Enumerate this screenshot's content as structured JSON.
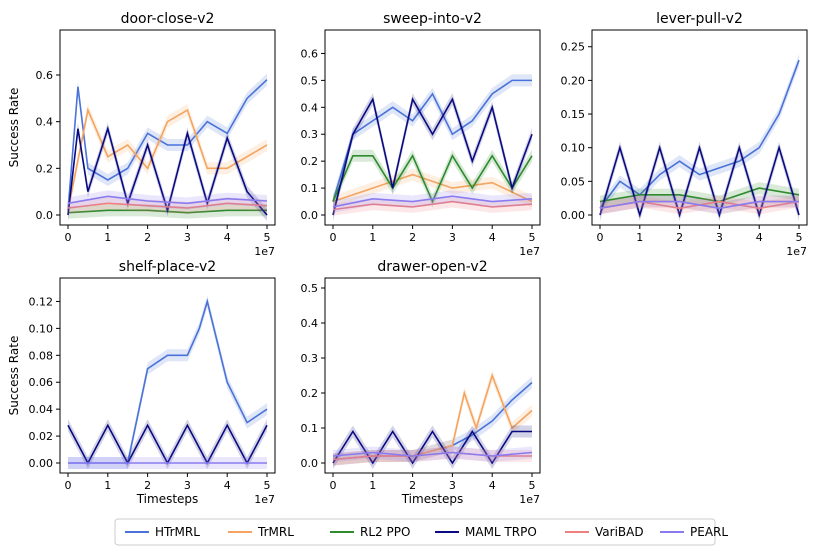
{
  "legend": [
    {
      "name": "HTrMRL",
      "color": "#4a72d8"
    },
    {
      "name": "TrMRL",
      "color": "#f4a460"
    },
    {
      "name": "RL2 PPO",
      "color": "#2e8b2e"
    },
    {
      "name": "MAML TRPO",
      "color": "#0a0a80"
    },
    {
      "name": "VariBAD",
      "color": "#f08080"
    },
    {
      "name": "PEARL",
      "color": "#8a7cf0"
    }
  ],
  "chart_data": [
    {
      "type": "line",
      "title": "door-close-v2",
      "xlabel": "",
      "ylabel": "Success Rate",
      "x_multiplier": "1e7",
      "xlim": [
        0,
        5
      ],
      "ylim": [
        0,
        0.75
      ],
      "xticks": [
        "0",
        "1",
        "2",
        "3",
        "4",
        "5"
      ],
      "yticks": [
        "0.0",
        "0.2",
        "0.4",
        "0.6"
      ],
      "ytick_values": [
        0.0,
        0.2,
        0.4,
        0.6
      ],
      "series": [
        {
          "name": "HTrMRL",
          "x": [
            0,
            0.25,
            0.5,
            1,
            1.5,
            2,
            2.5,
            3,
            3.5,
            4,
            4.5,
            5
          ],
          "values": [
            0.02,
            0.55,
            0.2,
            0.15,
            0.2,
            0.35,
            0.3,
            0.3,
            0.4,
            0.35,
            0.5,
            0.58
          ]
        },
        {
          "name": "TrMRL",
          "x": [
            0,
            0.5,
            1,
            1.5,
            2,
            2.5,
            3,
            3.5,
            4,
            4.5,
            5
          ],
          "values": [
            0.02,
            0.45,
            0.25,
            0.3,
            0.2,
            0.4,
            0.45,
            0.2,
            0.2,
            0.25,
            0.3
          ]
        },
        {
          "name": "RL2 PPO",
          "x": [
            0,
            1,
            2,
            3,
            4,
            5
          ],
          "values": [
            0.01,
            0.02,
            0.02,
            0.01,
            0.02,
            0.02
          ]
        },
        {
          "name": "MAML TRPO",
          "x": [
            0,
            0.25,
            0.5,
            1,
            1.5,
            2,
            2.5,
            3,
            3.5,
            4,
            4.5,
            5
          ],
          "values": [
            0.0,
            0.37,
            0.1,
            0.37,
            0.05,
            0.3,
            0.02,
            0.35,
            0.05,
            0.33,
            0.1,
            0.0
          ]
        },
        {
          "name": "VariBAD",
          "x": [
            0,
            1,
            2,
            3,
            4,
            5
          ],
          "values": [
            0.03,
            0.05,
            0.04,
            0.03,
            0.05,
            0.04
          ]
        },
        {
          "name": "PEARL",
          "x": [
            0,
            1,
            2,
            3,
            4,
            5
          ],
          "values": [
            0.05,
            0.08,
            0.06,
            0.05,
            0.07,
            0.06
          ]
        }
      ]
    },
    {
      "type": "line",
      "title": "sweep-into-v2",
      "xlabel": "",
      "ylabel": "",
      "x_multiplier": "1e7",
      "xlim": [
        0,
        5
      ],
      "ylim": [
        0,
        0.65
      ],
      "xticks": [
        "0",
        "1",
        "2",
        "3",
        "4",
        "5"
      ],
      "yticks": [
        "0.0",
        "0.1",
        "0.2",
        "0.3",
        "0.4",
        "0.5",
        "0.6"
      ],
      "ytick_values": [
        0.0,
        0.1,
        0.2,
        0.3,
        0.4,
        0.5,
        0.6
      ],
      "series": [
        {
          "name": "HTrMRL",
          "x": [
            0,
            0.5,
            1,
            1.5,
            2,
            2.5,
            3,
            3.5,
            4,
            4.5,
            5
          ],
          "values": [
            0.05,
            0.3,
            0.35,
            0.4,
            0.35,
            0.45,
            0.3,
            0.35,
            0.45,
            0.5,
            0.5
          ]
        },
        {
          "name": "TrMRL",
          "x": [
            0,
            1,
            2,
            3,
            4,
            5
          ],
          "values": [
            0.05,
            0.1,
            0.15,
            0.1,
            0.12,
            0.05
          ]
        },
        {
          "name": "RL2 PPO",
          "x": [
            0,
            0.5,
            1,
            1.5,
            2,
            2.5,
            3,
            3.5,
            4,
            4.5,
            5
          ],
          "values": [
            0.05,
            0.22,
            0.22,
            0.1,
            0.22,
            0.05,
            0.22,
            0.1,
            0.22,
            0.1,
            0.22
          ]
        },
        {
          "name": "MAML TRPO",
          "x": [
            0,
            0.5,
            1,
            1.5,
            2,
            2.5,
            3,
            3.5,
            4,
            4.5,
            5
          ],
          "values": [
            0.0,
            0.3,
            0.43,
            0.1,
            0.43,
            0.3,
            0.43,
            0.2,
            0.4,
            0.1,
            0.3
          ]
        },
        {
          "name": "VariBAD",
          "x": [
            0,
            1,
            2,
            3,
            4,
            5
          ],
          "values": [
            0.02,
            0.04,
            0.03,
            0.05,
            0.03,
            0.04
          ]
        },
        {
          "name": "PEARL",
          "x": [
            0,
            1,
            2,
            3,
            4,
            5
          ],
          "values": [
            0.03,
            0.06,
            0.05,
            0.07,
            0.05,
            0.06
          ]
        }
      ]
    },
    {
      "type": "line",
      "title": "lever-pull-v2",
      "xlabel": "",
      "ylabel": "",
      "x_multiplier": "1e7",
      "xlim": [
        0,
        5
      ],
      "ylim": [
        0,
        0.26
      ],
      "xticks": [
        "0",
        "1",
        "2",
        "3",
        "4",
        "5"
      ],
      "yticks": [
        "0.00",
        "0.05",
        "0.10",
        "0.15",
        "0.20",
        "0.25"
      ],
      "ytick_values": [
        0.0,
        0.05,
        0.1,
        0.15,
        0.2,
        0.25
      ],
      "series": [
        {
          "name": "HTrMRL",
          "x": [
            0,
            0.5,
            1,
            1.5,
            2,
            2.5,
            3,
            3.5,
            4,
            4.5,
            5
          ],
          "values": [
            0.01,
            0.05,
            0.03,
            0.06,
            0.08,
            0.06,
            0.07,
            0.08,
            0.1,
            0.15,
            0.23
          ]
        },
        {
          "name": "TrMRL",
          "x": [
            0,
            1,
            2,
            3,
            4,
            5
          ],
          "values": [
            0.01,
            0.02,
            0.02,
            0.01,
            0.02,
            0.02
          ]
        },
        {
          "name": "RL2 PPO",
          "x": [
            0,
            1,
            2,
            3,
            4,
            5
          ],
          "values": [
            0.02,
            0.03,
            0.03,
            0.02,
            0.04,
            0.03
          ]
        },
        {
          "name": "MAML TRPO",
          "x": [
            0,
            0.5,
            1,
            1.5,
            2,
            2.5,
            3,
            3.5,
            4,
            4.5,
            5
          ],
          "values": [
            0.0,
            0.1,
            0.0,
            0.1,
            0.0,
            0.1,
            0.0,
            0.1,
            0.0,
            0.1,
            0.0
          ]
        },
        {
          "name": "VariBAD",
          "x": [
            0,
            1,
            2,
            3,
            4,
            5
          ],
          "values": [
            0.01,
            0.02,
            0.01,
            0.02,
            0.01,
            0.02
          ]
        },
        {
          "name": "PEARL",
          "x": [
            0,
            1,
            2,
            3,
            4,
            5
          ],
          "values": [
            0.01,
            0.02,
            0.02,
            0.01,
            0.02,
            0.02
          ]
        }
      ]
    },
    {
      "type": "line",
      "title": "shelf-place-v2",
      "xlabel": "Timesteps",
      "ylabel": "Success Rate",
      "x_multiplier": "1e7",
      "xlim": [
        0,
        5
      ],
      "ylim": [
        0,
        0.13
      ],
      "xticks": [
        "0",
        "1",
        "2",
        "3",
        "4",
        "5"
      ],
      "yticks": [
        "0.00",
        "0.02",
        "0.04",
        "0.06",
        "0.08",
        "0.10",
        "0.12"
      ],
      "ytick_values": [
        0.0,
        0.02,
        0.04,
        0.06,
        0.08,
        0.1,
        0.12
      ],
      "series": [
        {
          "name": "HTrMRL",
          "x": [
            0,
            1.5,
            2,
            2.5,
            3,
            3.3,
            3.5,
            4,
            4.5,
            5
          ],
          "values": [
            0.0,
            0.0,
            0.07,
            0.08,
            0.08,
            0.1,
            0.12,
            0.06,
            0.03,
            0.04
          ]
        },
        {
          "name": "MAML TRPO",
          "x": [
            0,
            0.5,
            1,
            1.5,
            2,
            2.5,
            3,
            3.5,
            4,
            4.5,
            5
          ],
          "values": [
            0.028,
            0.0,
            0.028,
            0.0,
            0.028,
            0.0,
            0.028,
            0.0,
            0.028,
            0.0,
            0.028
          ]
        },
        {
          "name": "PEARL",
          "x": [
            0,
            5
          ],
          "values": [
            0.0,
            0.0
          ]
        }
      ]
    },
    {
      "type": "line",
      "title": "drawer-open-v2",
      "xlabel": "Timesteps",
      "ylabel": "",
      "x_multiplier": "1e7",
      "xlim": [
        0,
        5
      ],
      "ylim": [
        0,
        0.5
      ],
      "xticks": [
        "0",
        "1",
        "2",
        "3",
        "4",
        "5"
      ],
      "yticks": [
        "0.0",
        "0.1",
        "0.2",
        "0.3",
        "0.4",
        "0.5"
      ],
      "ytick_values": [
        0.0,
        0.1,
        0.2,
        0.3,
        0.4,
        0.5
      ],
      "series": [
        {
          "name": "HTrMRL",
          "x": [
            0,
            1,
            2,
            3,
            3.5,
            4,
            4.5,
            5
          ],
          "values": [
            0.01,
            0.02,
            0.02,
            0.05,
            0.08,
            0.12,
            0.18,
            0.23
          ]
        },
        {
          "name": "TrMRL",
          "x": [
            0,
            1,
            2,
            3,
            3.3,
            3.6,
            4,
            4.5,
            5
          ],
          "values": [
            0.01,
            0.02,
            0.02,
            0.05,
            0.2,
            0.1,
            0.25,
            0.1,
            0.15
          ]
        },
        {
          "name": "MAML TRPO",
          "x": [
            0,
            0.5,
            1,
            1.5,
            2,
            2.5,
            3,
            3.5,
            4,
            4.5,
            5
          ],
          "values": [
            0.0,
            0.09,
            0.0,
            0.09,
            0.0,
            0.09,
            0.0,
            0.09,
            0.0,
            0.09,
            0.09
          ]
        },
        {
          "name": "VariBAD",
          "x": [
            0,
            1,
            2,
            3,
            4,
            5
          ],
          "values": [
            0.01,
            0.02,
            0.02,
            0.03,
            0.02,
            0.02
          ]
        },
        {
          "name": "PEARL",
          "x": [
            0,
            1,
            2,
            3,
            4,
            5
          ],
          "values": [
            0.02,
            0.03,
            0.02,
            0.03,
            0.02,
            0.03
          ]
        }
      ]
    }
  ]
}
